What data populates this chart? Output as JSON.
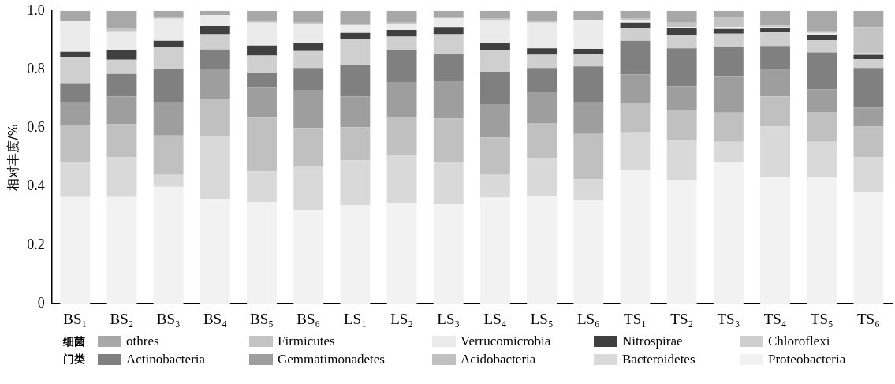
{
  "chart_data": {
    "type": "bar",
    "stacked": true,
    "ylabel": "相对丰度/%",
    "legend_title": "细菌门类",
    "legend": "bottom",
    "grid": false,
    "categories": [
      "BS₁",
      "BS₂",
      "BS₃",
      "BS₄",
      "BS₅",
      "BS₆",
      "LS₁",
      "LS₂",
      "LS₃",
      "LS₄",
      "LS₅",
      "LS₆",
      "TS₁",
      "TS₂",
      "TS₃",
      "TS₄",
      "TS₅",
      "TS₆"
    ],
    "ylim": [
      0,
      1
    ],
    "yticks": [
      0,
      0.2,
      0.4,
      0.6,
      0.8,
      {
        "value": 1,
        "label": "1.0"
      }
    ],
    "series": [
      {
        "name": "Proteobacteria",
        "color": "#f2f2f2",
        "values": [
          0.365,
          0.365,
          0.4,
          0.358,
          0.347,
          0.32,
          0.337,
          0.342,
          0.34,
          0.363,
          0.368,
          0.352,
          0.455,
          0.422,
          0.485,
          0.433,
          0.432,
          0.383
        ]
      },
      {
        "name": "Bacteroidetes",
        "color": "#d9d9d9",
        "values": [
          0.12,
          0.135,
          0.04,
          0.215,
          0.105,
          0.147,
          0.153,
          0.166,
          0.145,
          0.077,
          0.13,
          0.073,
          0.128,
          0.135,
          0.068,
          0.172,
          0.121,
          0.117
        ]
      },
      {
        "name": "Acidobacteria",
        "color": "#c0c0c0",
        "values": [
          0.127,
          0.113,
          0.135,
          0.127,
          0.183,
          0.133,
          0.112,
          0.129,
          0.147,
          0.127,
          0.119,
          0.155,
          0.103,
          0.103,
          0.1,
          0.103,
          0.102,
          0.105
        ]
      },
      {
        "name": "Gemmatimonadetes",
        "color": "#9e9e9e",
        "values": [
          0.078,
          0.095,
          0.115,
          0.103,
          0.105,
          0.13,
          0.106,
          0.12,
          0.128,
          0.115,
          0.103,
          0.11,
          0.097,
          0.082,
          0.122,
          0.09,
          0.077,
          0.065
        ]
      },
      {
        "name": "Actinobacteria",
        "color": "#808080",
        "values": [
          0.063,
          0.077,
          0.113,
          0.065,
          0.047,
          0.075,
          0.107,
          0.11,
          0.092,
          0.11,
          0.085,
          0.12,
          0.115,
          0.13,
          0.102,
          0.082,
          0.126,
          0.135
        ]
      },
      {
        "name": "Chloroflexi",
        "color": "#cfcfcf",
        "values": [
          0.09,
          0.048,
          0.073,
          0.052,
          0.06,
          0.058,
          0.09,
          0.045,
          0.068,
          0.073,
          0.045,
          0.041,
          0.045,
          0.046,
          0.045,
          0.048,
          0.042,
          0.03
        ]
      },
      {
        "name": "Nitrospirae",
        "color": "#404040",
        "values": [
          0.017,
          0.032,
          0.022,
          0.028,
          0.035,
          0.027,
          0.02,
          0.023,
          0.025,
          0.025,
          0.022,
          0.019,
          0.017,
          0.022,
          0.016,
          0.012,
          0.018,
          0.015
        ]
      },
      {
        "name": "Verrucomicrobia",
        "color": "#ebebeb",
        "values": [
          0.105,
          0.065,
          0.075,
          0.037,
          0.078,
          0.065,
          0.025,
          0.02,
          0.03,
          0.08,
          0.088,
          0.1,
          0.01,
          0.005,
          0.007,
          0.005,
          0.007,
          0.005
        ]
      },
      {
        "name": "Firmicutes",
        "color": "#c4c4c4",
        "values": [
          0,
          0.01,
          0.007,
          0,
          0.005,
          0.005,
          0.005,
          0.005,
          0.003,
          0.005,
          0.005,
          0,
          0.005,
          0.015,
          0.035,
          0.005,
          0.005,
          0.09
        ]
      },
      {
        "name": "othres",
        "color": "#a8a8a8",
        "values": [
          0.035,
          0.06,
          0.02,
          0.015,
          0.035,
          0.04,
          0.045,
          0.04,
          0.022,
          0.025,
          0.035,
          0.03,
          0.025,
          0.04,
          0.02,
          0.05,
          0.07,
          0.055
        ]
      }
    ]
  }
}
